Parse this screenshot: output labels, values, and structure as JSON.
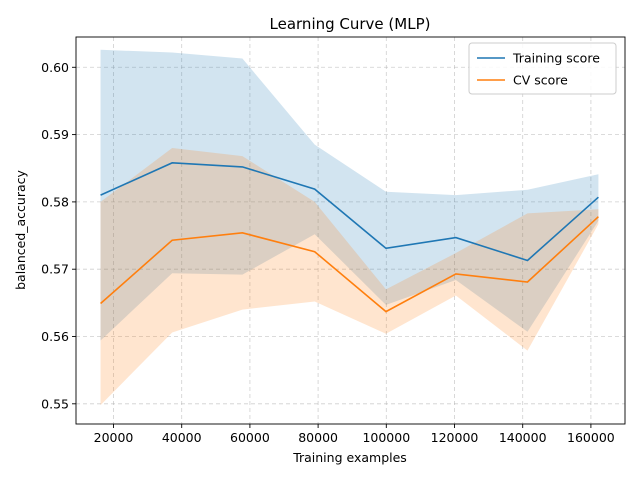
{
  "chart_data": {
    "type": "line",
    "title": "Learning Curve (MLP)",
    "xlabel": "Training examples",
    "ylabel": "balanced_accuracy",
    "xlim": [
      9000,
      170000
    ],
    "ylim": [
      0.547,
      0.6045
    ],
    "xticks": [
      20000,
      40000,
      60000,
      80000,
      100000,
      120000,
      140000,
      160000
    ],
    "yticks": [
      0.55,
      0.56,
      0.57,
      0.58,
      0.59,
      0.6
    ],
    "grid": true,
    "legend_position": "top-right",
    "x": [
      16200,
      37200,
      57800,
      79000,
      99900,
      120400,
      141400,
      162200
    ],
    "series": [
      {
        "name": "Training score",
        "color": "#1f77b4",
        "band_color": "#1f77b4",
        "values": [
          0.581,
          0.5858,
          0.5852,
          0.5819,
          0.5731,
          0.5747,
          0.5713,
          0.5807
        ],
        "upper": [
          0.6026,
          0.6022,
          0.6013,
          0.5885,
          0.5815,
          0.581,
          0.5818,
          0.5841
        ],
        "lower": [
          0.5594,
          0.5694,
          0.5692,
          0.5752,
          0.5647,
          0.5684,
          0.5607,
          0.5772
        ]
      },
      {
        "name": "CV score",
        "color": "#ff7f0e",
        "band_color": "#ff7f0e",
        "values": [
          0.5649,
          0.5743,
          0.5754,
          0.5726,
          0.5637,
          0.5693,
          0.5681,
          0.5778
        ],
        "upper": [
          0.58,
          0.588,
          0.5868,
          0.58,
          0.567,
          0.5724,
          0.5783,
          0.5789
        ],
        "lower": [
          0.5498,
          0.5606,
          0.564,
          0.5652,
          0.5604,
          0.5661,
          0.5579,
          0.5767
        ]
      }
    ]
  }
}
